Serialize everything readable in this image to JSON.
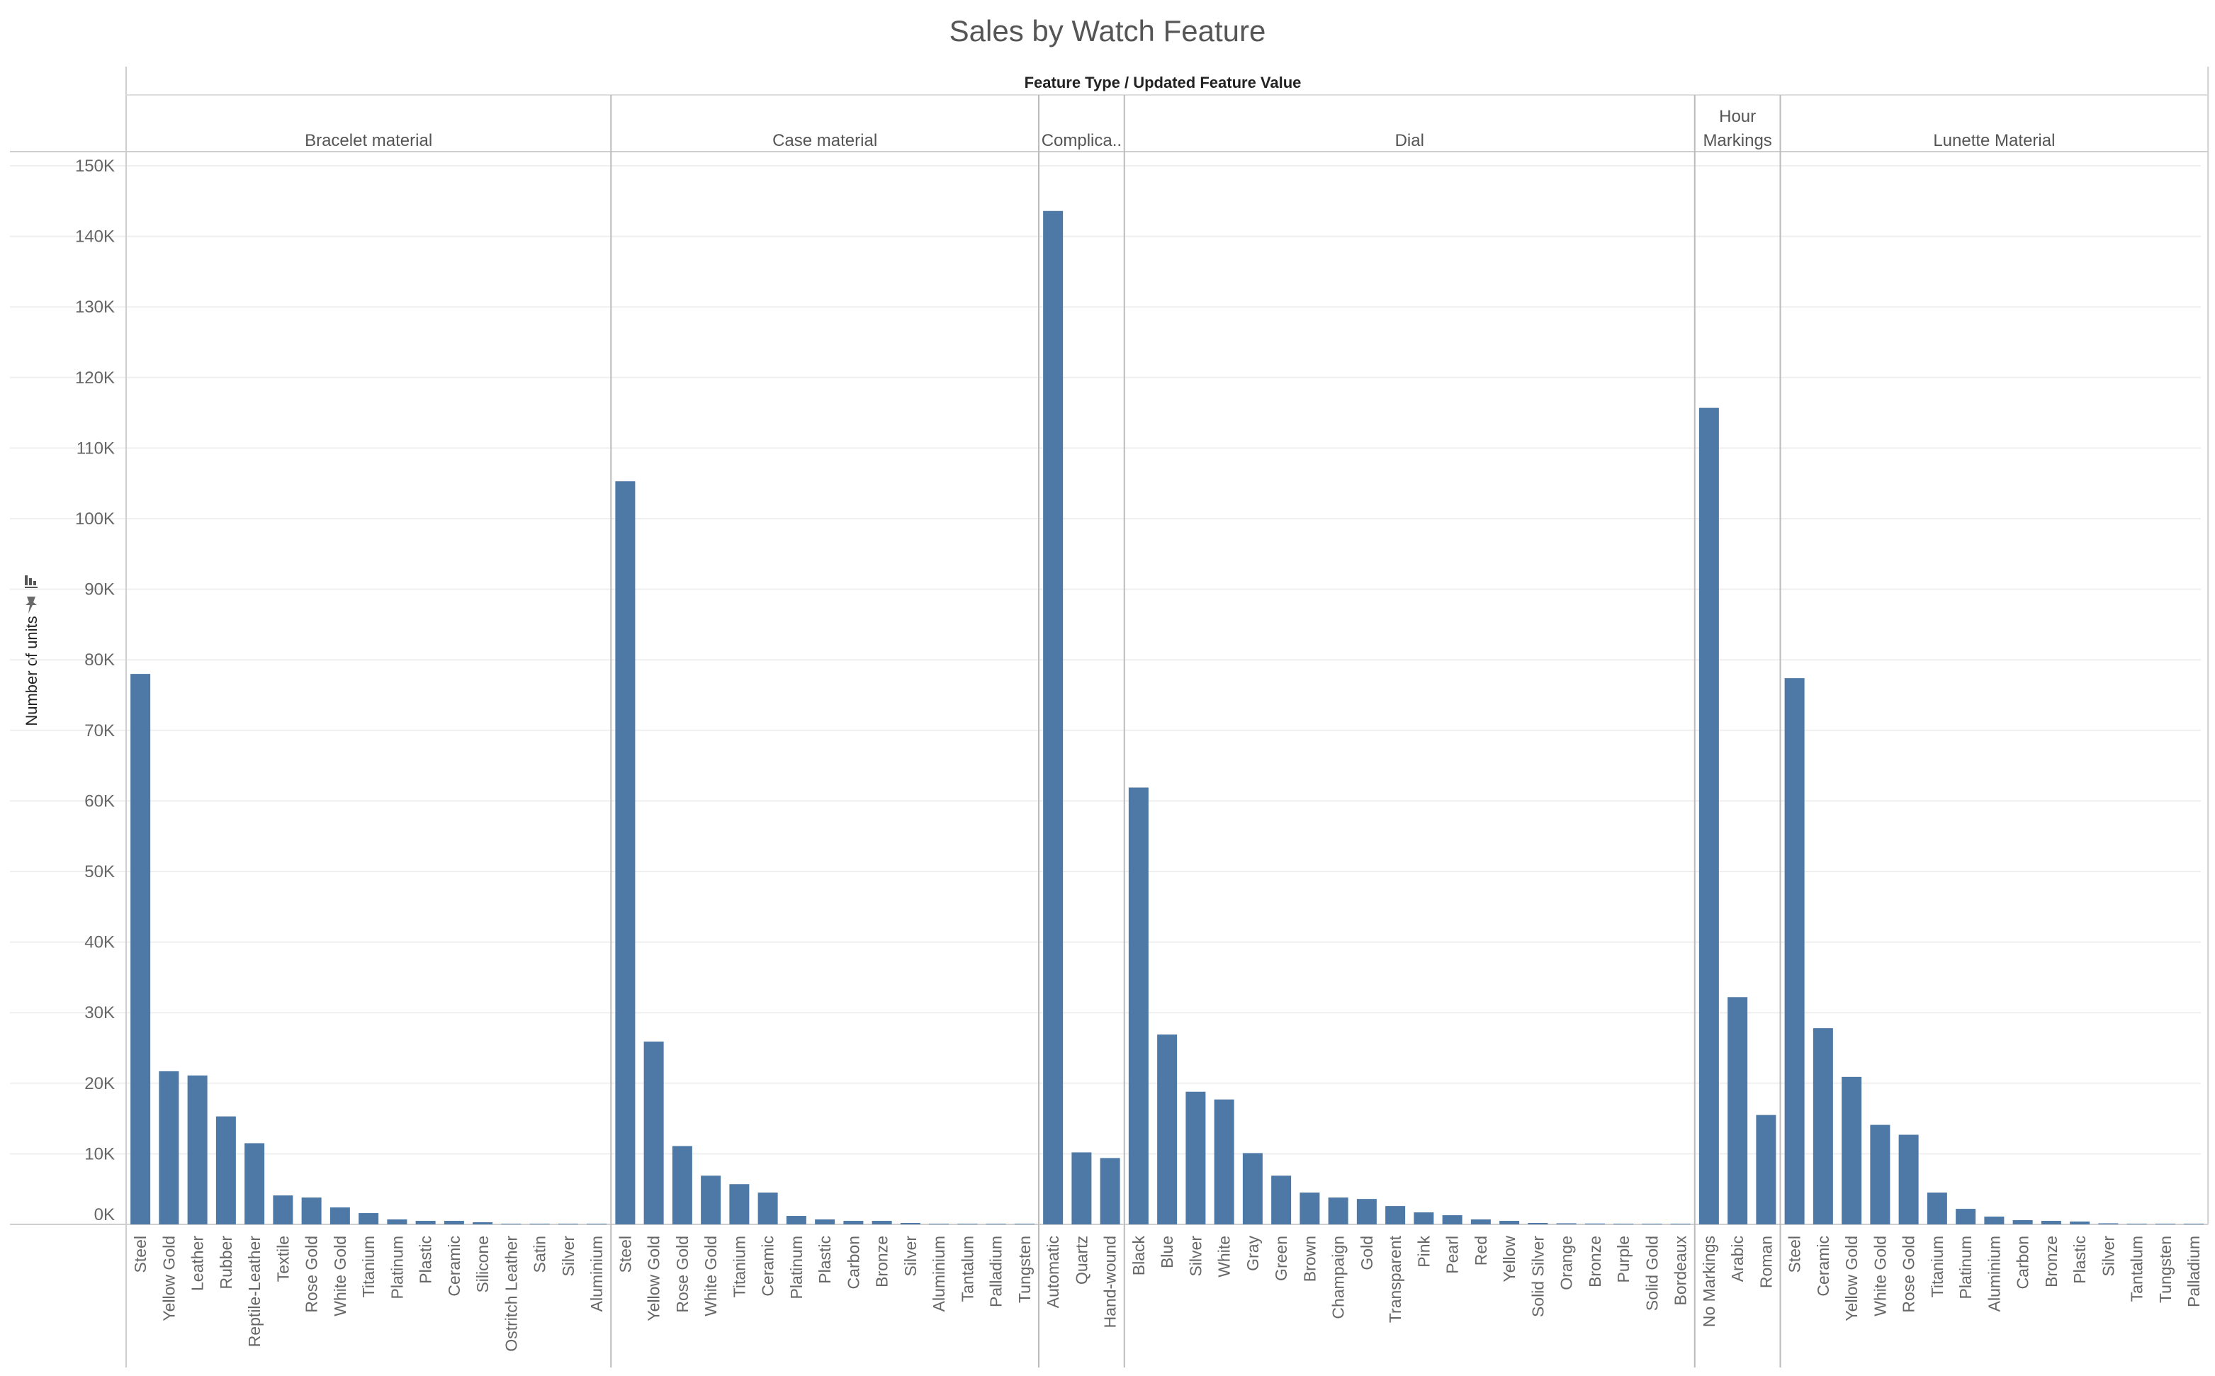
{
  "chart_data": {
    "type": "bar",
    "title": "Sales by Watch Feature",
    "header": "Feature Type  /  Updated Feature Value",
    "ylabel": "Number of units",
    "ylim": [
      0,
      150000
    ],
    "yticks": [
      0,
      10000,
      20000,
      30000,
      40000,
      50000,
      60000,
      70000,
      80000,
      90000,
      100000,
      110000,
      120000,
      130000,
      140000,
      150000
    ],
    "ytick_labels": [
      "0K",
      "10K",
      "20K",
      "30K",
      "40K",
      "50K",
      "60K",
      "70K",
      "80K",
      "90K",
      "100K",
      "110K",
      "120K",
      "130K",
      "140K",
      "150K"
    ],
    "bar_color": "#4e79a7",
    "grid": true,
    "panels": [
      {
        "name": "Bracelet material",
        "categories": [
          "Steel",
          "Yellow Gold",
          "Leather",
          "Rubber",
          "Reptile-Leather",
          "Textile",
          "Rose Gold",
          "White Gold",
          "Titanium",
          "Platinum",
          "Plastic",
          "Ceramic",
          "Silicone",
          "Ostritch Leather",
          "Satin",
          "Silver",
          "Aluminium"
        ],
        "values": [
          78000,
          21700,
          21100,
          15300,
          11500,
          4100,
          3800,
          2400,
          1600,
          700,
          500,
          500,
          300,
          50,
          30,
          20,
          10
        ]
      },
      {
        "name": "Case material",
        "categories": [
          "Steel",
          "Yellow Gold",
          "Rose Gold",
          "White Gold",
          "Titanium",
          "Ceramic",
          "Platinum",
          "Plastic",
          "Carbon",
          "Bronze",
          "Silver",
          "Aluminium",
          "Tantalum",
          "Palladium",
          "Tungsten"
        ],
        "values": [
          105300,
          25900,
          11100,
          6900,
          5700,
          4500,
          1200,
          700,
          500,
          500,
          200,
          50,
          30,
          20,
          10
        ]
      },
      {
        "name": "Complica..",
        "categories": [
          "Automatic",
          "Quartz",
          "Hand-wound"
        ],
        "values": [
          143600,
          10200,
          9400
        ]
      },
      {
        "name": "Dial",
        "categories": [
          "Black",
          "Blue",
          "Silver",
          "White",
          "Gray",
          "Green",
          "Brown",
          "Champaign",
          "Gold",
          "Transparent",
          "Pink",
          "Pearl",
          "Red",
          "Yellow",
          "Solid Silver",
          "Orange",
          "Bronze",
          "Purple",
          "Solid Gold",
          "Bordeaux"
        ],
        "values": [
          61900,
          26900,
          18800,
          17700,
          10100,
          6900,
          4500,
          3800,
          3600,
          2600,
          1700,
          1300,
          700,
          500,
          200,
          150,
          120,
          100,
          80,
          20
        ]
      },
      {
        "name": "Hour Markings",
        "name_lines": [
          "Hour",
          "Markings"
        ],
        "categories": [
          "No Markings",
          "Arabic",
          "Roman"
        ],
        "values": [
          115700,
          32200,
          15500
        ]
      },
      {
        "name": "Lunette Material",
        "categories": [
          "Steel",
          "Ceramic",
          "Yellow Gold",
          "White Gold",
          "Rose Gold",
          "Titanium",
          "Platinum",
          "Aluminium",
          "Carbon",
          "Bronze",
          "Plastic",
          "Silver",
          "Tantalum",
          "Tungsten",
          "Palladium"
        ],
        "values": [
          77400,
          27800,
          20900,
          14100,
          12700,
          4500,
          2200,
          1100,
          600,
          500,
          400,
          150,
          30,
          20,
          10
        ]
      }
    ]
  }
}
